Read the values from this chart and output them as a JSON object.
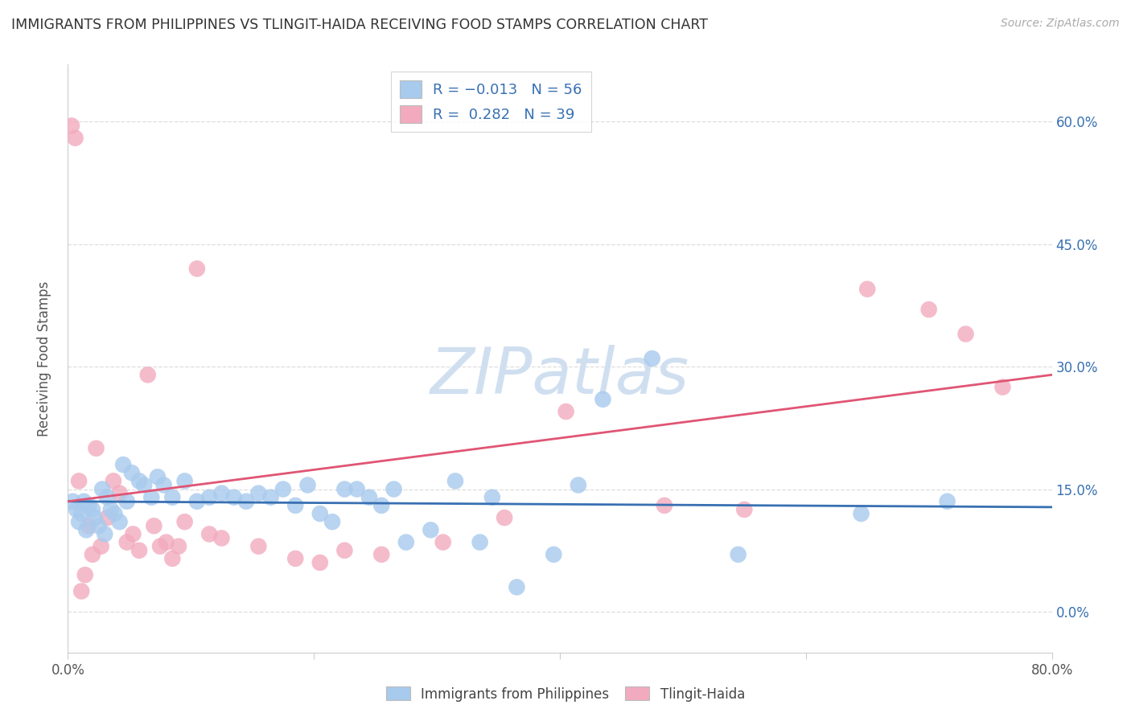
{
  "title": "IMMIGRANTS FROM PHILIPPINES VS TLINGIT-HAIDA RECEIVING FOOD STAMPS CORRELATION CHART",
  "source": "Source: ZipAtlas.com",
  "ylabel": "Receiving Food Stamps",
  "ytick_vals": [
    0.0,
    15.0,
    30.0,
    45.0,
    60.0
  ],
  "ytick_labels": [
    "0.0%",
    "15.0%",
    "30.0%",
    "45.0%",
    "60.0%"
  ],
  "xtick_vals": [
    0,
    20,
    40,
    60,
    80
  ],
  "xlim": [
    0.0,
    80.0
  ],
  "ylim": [
    -5.0,
    67.0
  ],
  "blue_color": "#A8CAED",
  "pink_color": "#F2ABBE",
  "blue_line_color": "#3870B2",
  "pink_line_color": "#E05575",
  "axis_color": "#cccccc",
  "grid_color": "#dddddd",
  "text_color": "#555555",
  "right_tick_color": "#3870B2",
  "watermark_color": "#D0DFF0",
  "watermark": "ZIPatlas",
  "blue_points": [
    [
      0.4,
      13.5
    ],
    [
      0.7,
      12.5
    ],
    [
      0.9,
      11.0
    ],
    [
      1.1,
      12.0
    ],
    [
      1.3,
      13.5
    ],
    [
      1.5,
      10.0
    ],
    [
      1.7,
      13.0
    ],
    [
      2.0,
      12.5
    ],
    [
      2.2,
      11.5
    ],
    [
      2.5,
      10.5
    ],
    [
      2.8,
      15.0
    ],
    [
      3.0,
      9.5
    ],
    [
      3.2,
      14.0
    ],
    [
      3.5,
      12.5
    ],
    [
      3.8,
      12.0
    ],
    [
      4.2,
      11.0
    ],
    [
      4.5,
      18.0
    ],
    [
      4.8,
      13.5
    ],
    [
      5.2,
      17.0
    ],
    [
      5.8,
      16.0
    ],
    [
      6.2,
      15.5
    ],
    [
      6.8,
      14.0
    ],
    [
      7.3,
      16.5
    ],
    [
      7.8,
      15.5
    ],
    [
      8.5,
      14.0
    ],
    [
      9.5,
      16.0
    ],
    [
      10.5,
      13.5
    ],
    [
      11.5,
      14.0
    ],
    [
      12.5,
      14.5
    ],
    [
      13.5,
      14.0
    ],
    [
      14.5,
      13.5
    ],
    [
      15.5,
      14.5
    ],
    [
      16.5,
      14.0
    ],
    [
      17.5,
      15.0
    ],
    [
      18.5,
      13.0
    ],
    [
      19.5,
      15.5
    ],
    [
      20.5,
      12.0
    ],
    [
      21.5,
      11.0
    ],
    [
      22.5,
      15.0
    ],
    [
      23.5,
      15.0
    ],
    [
      24.5,
      14.0
    ],
    [
      25.5,
      13.0
    ],
    [
      26.5,
      15.0
    ],
    [
      27.5,
      8.5
    ],
    [
      29.5,
      10.0
    ],
    [
      31.5,
      16.0
    ],
    [
      33.5,
      8.5
    ],
    [
      34.5,
      14.0
    ],
    [
      36.5,
      3.0
    ],
    [
      39.5,
      7.0
    ],
    [
      41.5,
      15.5
    ],
    [
      43.5,
      26.0
    ],
    [
      47.5,
      31.0
    ],
    [
      54.5,
      7.0
    ],
    [
      64.5,
      12.0
    ],
    [
      71.5,
      13.5
    ]
  ],
  "pink_points": [
    [
      0.3,
      59.5
    ],
    [
      0.6,
      58.0
    ],
    [
      0.9,
      16.0
    ],
    [
      1.1,
      2.5
    ],
    [
      1.4,
      4.5
    ],
    [
      1.7,
      10.5
    ],
    [
      2.0,
      7.0
    ],
    [
      2.3,
      20.0
    ],
    [
      2.7,
      8.0
    ],
    [
      3.2,
      11.5
    ],
    [
      3.7,
      16.0
    ],
    [
      4.2,
      14.5
    ],
    [
      4.8,
      8.5
    ],
    [
      5.3,
      9.5
    ],
    [
      5.8,
      7.5
    ],
    [
      6.5,
      29.0
    ],
    [
      7.0,
      10.5
    ],
    [
      7.5,
      8.0
    ],
    [
      8.0,
      8.5
    ],
    [
      8.5,
      6.5
    ],
    [
      9.0,
      8.0
    ],
    [
      9.5,
      11.0
    ],
    [
      10.5,
      42.0
    ],
    [
      11.5,
      9.5
    ],
    [
      12.5,
      9.0
    ],
    [
      15.5,
      8.0
    ],
    [
      18.5,
      6.5
    ],
    [
      20.5,
      6.0
    ],
    [
      22.5,
      7.5
    ],
    [
      25.5,
      7.0
    ],
    [
      30.5,
      8.5
    ],
    [
      35.5,
      11.5
    ],
    [
      40.5,
      24.5
    ],
    [
      48.5,
      13.0
    ],
    [
      55.0,
      12.5
    ],
    [
      65.0,
      39.5
    ],
    [
      70.0,
      37.0
    ],
    [
      73.0,
      34.0
    ],
    [
      76.0,
      27.5
    ]
  ],
  "blue_trend_x": [
    0.0,
    80.0
  ],
  "blue_trend_y": [
    13.5,
    12.8
  ],
  "pink_trend_x": [
    0.0,
    80.0
  ],
  "pink_trend_y": [
    13.5,
    29.0
  ]
}
